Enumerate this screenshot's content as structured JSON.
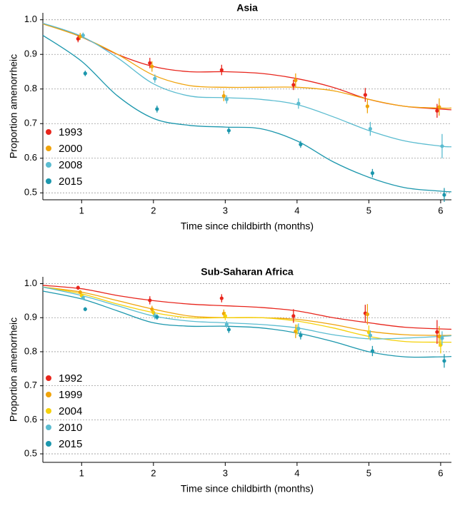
{
  "chart_data": [
    {
      "type": "scatter",
      "title": "Asia",
      "xlabel": "Time since childbirth (months)",
      "ylabel": "Proportion amenorrheic",
      "xlim": [
        0.46,
        6.15
      ],
      "xticks": [
        1,
        2,
        3,
        4,
        5,
        6
      ],
      "ylim": [
        0.48,
        1.02
      ],
      "yticks": [
        {
          "value": 1,
          "label": "1.0"
        },
        0.9,
        0.8,
        0.7,
        0.6,
        0.5
      ],
      "grid": true,
      "legend": "lower left",
      "fit_x": [
        0.46,
        1,
        1.5,
        2,
        2.5,
        3,
        3.5,
        4,
        4.5,
        5,
        5.5,
        6,
        6.15
      ],
      "series": [
        {
          "name": "1993",
          "color": "#e8251c",
          "x": [
            0.95,
            1.95,
            2.95,
            3.95,
            4.95,
            5.95
          ],
          "values": [
            0.945,
            0.875,
            0.855,
            0.812,
            0.783,
            0.737
          ],
          "errors": [
            0.01,
            0.015,
            0.015,
            0.015,
            0.02,
            0.02
          ],
          "fit": [
            0.99,
            0.95,
            0.9,
            0.865,
            0.85,
            0.85,
            0.845,
            0.83,
            0.805,
            0.77,
            0.75,
            0.742,
            0.74
          ]
        },
        {
          "name": "2000",
          "color": "#f0a30a",
          "x": [
            0.98,
            1.98,
            2.98,
            3.98,
            4.98,
            5.98
          ],
          "values": [
            0.952,
            0.865,
            0.78,
            0.825,
            0.75,
            0.748
          ],
          "errors": [
            0.01,
            0.015,
            0.015,
            0.02,
            0.02,
            0.025
          ],
          "fit": [
            0.988,
            0.95,
            0.9,
            0.84,
            0.81,
            0.805,
            0.805,
            0.805,
            0.795,
            0.77,
            0.75,
            0.745,
            0.745
          ]
        },
        {
          "name": "2008",
          "color": "#5bbcd0",
          "x": [
            1.02,
            2.02,
            3.02,
            4.02,
            5.02,
            6.02
          ],
          "values": [
            0.955,
            0.83,
            0.77,
            0.758,
            0.685,
            0.635
          ],
          "errors": [
            0.008,
            0.012,
            0.012,
            0.015,
            0.02,
            0.035
          ],
          "fit": [
            0.99,
            0.952,
            0.89,
            0.815,
            0.78,
            0.775,
            0.77,
            0.755,
            0.72,
            0.68,
            0.65,
            0.635,
            0.633
          ]
        },
        {
          "name": "2015",
          "color": "#1c97ad",
          "x": [
            1.05,
            2.05,
            3.05,
            4.05,
            5.05,
            6.05
          ],
          "values": [
            0.845,
            0.742,
            0.68,
            0.64,
            0.557,
            0.494
          ],
          "errors": [
            0.008,
            0.01,
            0.01,
            0.01,
            0.012,
            0.02
          ],
          "fit": [
            0.955,
            0.88,
            0.78,
            0.715,
            0.695,
            0.69,
            0.685,
            0.65,
            0.59,
            0.545,
            0.515,
            0.505,
            0.503
          ]
        }
      ]
    },
    {
      "type": "scatter",
      "title": "Sub-Saharan Africa",
      "xlabel": "Time since childbirth (months)",
      "ylabel": "Proportion amenorrheic",
      "xlim": [
        0.46,
        6.15
      ],
      "xticks": [
        1,
        2,
        3,
        4,
        5,
        6
      ],
      "ylim": [
        0.475,
        1.02
      ],
      "yticks": [
        {
          "value": 1,
          "label": "1.0"
        },
        0.9,
        0.8,
        0.7,
        0.6,
        0.5
      ],
      "grid": true,
      "legend": "lower left",
      "fit_x": [
        0.46,
        1,
        1.5,
        2,
        2.5,
        3,
        3.5,
        4,
        4.5,
        5,
        5.5,
        6,
        6.15
      ],
      "series": [
        {
          "name": "1992",
          "color": "#e8251c",
          "x": [
            0.95,
            1.95,
            2.95,
            3.95,
            4.95,
            5.95
          ],
          "values": [
            0.988,
            0.951,
            0.957,
            0.905,
            0.913,
            0.858
          ],
          "errors": [
            0.006,
            0.012,
            0.012,
            0.02,
            0.025,
            0.035
          ],
          "fit": [
            0.995,
            0.985,
            0.965,
            0.95,
            0.94,
            0.935,
            0.93,
            0.92,
            0.9,
            0.885,
            0.872,
            0.867,
            0.866
          ]
        },
        {
          "name": "1999",
          "color": "#f0a30a",
          "x": [
            0.98,
            1.98,
            2.98,
            3.98,
            4.98,
            5.98
          ],
          "values": [
            0.975,
            0.925,
            0.912,
            0.86,
            0.91,
            0.845
          ],
          "errors": [
            0.006,
            0.01,
            0.012,
            0.02,
            0.03,
            0.03
          ],
          "fit": [
            0.99,
            0.975,
            0.95,
            0.925,
            0.905,
            0.9,
            0.9,
            0.895,
            0.88,
            0.86,
            0.85,
            0.848,
            0.848
          ]
        },
        {
          "name": "2004",
          "color": "#f5d10a",
          "x": [
            1.0,
            2.0,
            3.0,
            4.0,
            5.0,
            6.0
          ],
          "values": [
            0.965,
            0.915,
            0.905,
            0.865,
            0.857,
            0.82
          ],
          "errors": [
            0.006,
            0.01,
            0.012,
            0.015,
            0.02,
            0.025
          ],
          "fit": [
            0.99,
            0.97,
            0.94,
            0.915,
            0.9,
            0.9,
            0.9,
            0.89,
            0.87,
            0.845,
            0.83,
            0.828,
            0.828
          ]
        },
        {
          "name": "2010",
          "color": "#5bbcd0",
          "x": [
            1.02,
            2.02,
            3.02,
            4.02,
            5.02,
            6.02
          ],
          "values": [
            0.958,
            0.905,
            0.88,
            0.868,
            0.848,
            0.84
          ],
          "errors": [
            0.006,
            0.01,
            0.01,
            0.015,
            0.015,
            0.02
          ],
          "fit": [
            0.99,
            0.965,
            0.935,
            0.905,
            0.89,
            0.885,
            0.88,
            0.87,
            0.85,
            0.838,
            0.84,
            0.845,
            0.847
          ]
        },
        {
          "name": "2015",
          "color": "#1c97ad",
          "x": [
            1.05,
            2.05,
            3.05,
            4.05,
            5.05,
            6.05
          ],
          "values": [
            0.925,
            0.902,
            0.865,
            0.848,
            0.802,
            0.773
          ],
          "errors": [
            0.006,
            0.008,
            0.01,
            0.012,
            0.015,
            0.02
          ],
          "fit": [
            0.978,
            0.955,
            0.92,
            0.885,
            0.875,
            0.875,
            0.87,
            0.855,
            0.83,
            0.8,
            0.785,
            0.785,
            0.786
          ]
        }
      ]
    }
  ]
}
